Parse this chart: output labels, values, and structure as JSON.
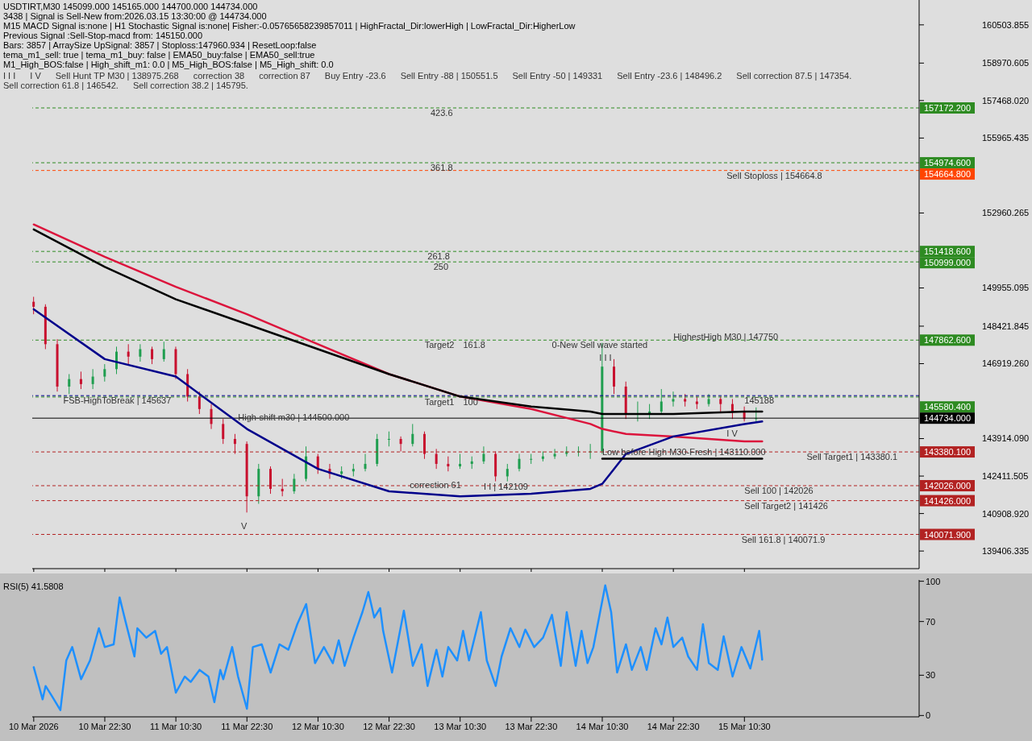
{
  "chart_data": [
    {
      "type": "candlestick",
      "title": "USDTIRT,M30  145099.000 145165.000 144700.000 144734.000",
      "x": [
        "2026-03-10T10:30",
        "2026-03-10T12:30",
        "2026-03-10T14:30",
        "2026-03-10T16:30",
        "2026-03-10T18:30",
        "2026-03-10T20:30",
        "2026-03-10T22:30",
        "2026-03-11T00:30",
        "2026-03-11T02:30",
        "2026-03-11T04:30",
        "2026-03-11T06:30",
        "2026-03-11T08:30",
        "2026-03-11T10:30",
        "2026-03-11T12:30",
        "2026-03-11T14:30",
        "2026-03-11T16:30",
        "2026-03-11T18:30",
        "2026-03-11T20:30",
        "2026-03-11T22:30",
        "2026-03-12T00:30",
        "2026-03-12T02:30",
        "2026-03-12T04:30",
        "2026-03-12T06:30",
        "2026-03-12T08:30",
        "2026-03-12T10:30",
        "2026-03-12T12:30",
        "2026-03-12T14:30",
        "2026-03-12T16:30",
        "2026-03-12T18:30",
        "2026-03-12T20:30",
        "2026-03-12T22:30",
        "2026-03-13T00:30",
        "2026-03-13T02:30",
        "2026-03-13T04:30",
        "2026-03-13T06:30",
        "2026-03-13T08:30",
        "2026-03-13T10:30",
        "2026-03-13T12:30",
        "2026-03-13T14:30",
        "2026-03-13T16:30",
        "2026-03-13T18:30",
        "2026-03-13T20:30",
        "2026-03-13T22:30",
        "2026-03-14T00:30",
        "2026-03-14T02:30",
        "2026-03-14T04:30",
        "2026-03-14T06:30",
        "2026-03-14T08:30",
        "2026-03-14T10:30",
        "2026-03-14T12:30",
        "2026-03-14T14:30",
        "2026-03-14T16:30",
        "2026-03-14T18:30",
        "2026-03-14T20:30",
        "2026-03-14T22:30",
        "2026-03-15T00:30",
        "2026-03-15T02:30",
        "2026-03-15T04:30",
        "2026-03-15T06:30",
        "2026-03-15T08:30",
        "2026-03-15T10:30",
        "2026-03-15T12:30"
      ],
      "ohlc": [
        [
          149400,
          149600,
          148900,
          149200
        ],
        [
          149200,
          149300,
          147500,
          147700
        ],
        [
          147700,
          147900,
          145800,
          146000
        ],
        [
          146000,
          146500,
          145700,
          146300
        ],
        [
          146300,
          146600,
          145900,
          146100
        ],
        [
          146100,
          146700,
          145900,
          146400
        ],
        [
          146400,
          146900,
          146200,
          146700
        ],
        [
          146700,
          147600,
          146500,
          147400
        ],
        [
          147400,
          147700,
          146900,
          147200
        ],
        [
          147200,
          147700,
          147000,
          147500
        ],
        [
          147500,
          147600,
          146900,
          147100
        ],
        [
          147100,
          147800,
          147000,
          147500
        ],
        [
          147500,
          147600,
          146300,
          146500
        ],
        [
          146500,
          146700,
          145400,
          145600
        ],
        [
          145600,
          145800,
          144900,
          145100
        ],
        [
          145100,
          145300,
          144300,
          144500
        ],
        [
          144500,
          144700,
          143700,
          143900
        ],
        [
          143900,
          144100,
          143300,
          143700
        ],
        [
          143700,
          143800,
          140950,
          141600
        ],
        [
          141600,
          142900,
          141300,
          142700
        ],
        [
          142700,
          142800,
          141700,
          141900
        ],
        [
          141900,
          142300,
          141600,
          141800
        ],
        [
          141800,
          142500,
          141700,
          142300
        ],
        [
          142300,
          143600,
          142200,
          143200
        ],
        [
          143200,
          143300,
          142500,
          142700
        ],
        [
          142700,
          142900,
          142300,
          142500
        ],
        [
          142500,
          142800,
          142300,
          142600
        ],
        [
          142600,
          142900,
          142400,
          142700
        ],
        [
          142700,
          143300,
          142600,
          142900
        ],
        [
          142900,
          144100,
          142800,
          143900
        ],
        [
          143900,
          144200,
          143600,
          143900
        ],
        [
          143900,
          144000,
          143400,
          143700
        ],
        [
          143700,
          144500,
          143600,
          144100
        ],
        [
          144100,
          144200,
          143100,
          143300
        ],
        [
          143300,
          143500,
          142700,
          142900
        ],
        [
          142900,
          143200,
          142600,
          142800
        ],
        [
          142800,
          143300,
          142700,
          142900
        ],
        [
          142900,
          143200,
          142700,
          143000
        ],
        [
          143000,
          143600,
          142900,
          143300
        ],
        [
          143300,
          143400,
          142200,
          142400
        ],
        [
          142400,
          142900,
          142200,
          142700
        ],
        [
          142700,
          143300,
          142600,
          143100
        ],
        [
          143100,
          143300,
          142900,
          143100
        ],
        [
          143100,
          143400,
          143000,
          143200
        ],
        [
          143200,
          143500,
          143100,
          143300
        ],
        [
          143300,
          143600,
          143200,
          143400
        ],
        [
          143400,
          143600,
          143200,
          143400
        ],
        [
          143400,
          143700,
          143100,
          143400
        ],
        [
          143400,
          147750,
          143300,
          146800
        ],
        [
          146800,
          147100,
          145700,
          146000
        ],
        [
          146000,
          146200,
          144700,
          144900
        ],
        [
          144900,
          145400,
          144600,
          144900
        ],
        [
          144900,
          145300,
          144700,
          145000
        ],
        [
          145000,
          145900,
          144900,
          145400
        ],
        [
          145400,
          145800,
          145200,
          145500
        ],
        [
          145500,
          145700,
          145200,
          145400
        ],
        [
          145400,
          145600,
          145100,
          145300
        ],
        [
          145300,
          145700,
          145200,
          145500
        ],
        [
          145500,
          145600,
          145000,
          145300
        ],
        [
          145300,
          145500,
          144700,
          145000
        ],
        [
          145000,
          145200,
          144600,
          144700
        ],
        [
          144700,
          145165,
          144600,
          144734
        ]
      ],
      "series": [
        {
          "type": "line",
          "color": "#dc143c",
          "x": [
            "2026-03-10T10:30",
            "2026-03-10T22:30",
            "2026-03-11T10:30",
            "2026-03-11T22:30",
            "2026-03-12T10:30",
            "2026-03-12T22:30",
            "2026-03-13T10:30",
            "2026-03-13T22:30",
            "2026-03-14T08:30",
            "2026-03-14T10:30",
            "2026-03-14T14:30",
            "2026-03-14T22:30",
            "2026-03-15T10:30",
            "2026-03-15T13:30"
          ],
          "values": [
            152500,
            151200,
            150000,
            148900,
            147700,
            146500,
            145600,
            145100,
            144500,
            144300,
            144100,
            144000,
            143800,
            143800
          ]
        },
        {
          "type": "line",
          "color": "#000000",
          "x": [
            "2026-03-10T10:30",
            "2026-03-10T22:30",
            "2026-03-11T10:30",
            "2026-03-11T22:30",
            "2026-03-12T10:30",
            "2026-03-12T22:30",
            "2026-03-13T10:30",
            "2026-03-13T22:30",
            "2026-03-14T08:30",
            "2026-03-14T10:30",
            "2026-03-14T14:30",
            "2026-03-14T22:30",
            "2026-03-15T10:30",
            "2026-03-15T13:30"
          ],
          "values": [
            152300,
            150800,
            149500,
            148500,
            147500,
            146500,
            145600,
            145200,
            145000,
            144900,
            144900,
            144900,
            145000,
            145000
          ]
        },
        {
          "type": "line",
          "color": "#00008b",
          "x": [
            "2026-03-10T10:30",
            "2026-03-10T22:30",
            "2026-03-11T10:30",
            "2026-03-11T22:30",
            "2026-03-12T10:30",
            "2026-03-12T22:30",
            "2026-03-13T10:30",
            "2026-03-13T22:30",
            "2026-03-14T08:30",
            "2026-03-14T10:30",
            "2026-03-14T14:30",
            "2026-03-14T22:30",
            "2026-03-15T10:30",
            "2026-03-15T13:30"
          ],
          "values": [
            149100,
            147100,
            146400,
            144300,
            142700,
            141800,
            141600,
            141700,
            141900,
            142100,
            143300,
            144000,
            144500,
            144600
          ]
        },
        {
          "type": "line",
          "color": "#000000",
          "x": [
            "2026-03-14T10:30",
            "2026-03-15T13:30"
          ],
          "values": [
            143110,
            143110
          ]
        }
      ],
      "xlim": [
        "2026-03-10T10:15",
        "2026-03-16T16:00"
      ],
      "xticks": [
        {
          "value": "2026-03-10T10:30",
          "label": null
        },
        {
          "value": "2026-03-10T22:30",
          "label": null
        },
        {
          "value": "2026-03-11T10:30",
          "label": null
        },
        {
          "value": "2026-03-11T22:30",
          "label": null
        },
        {
          "value": "2026-03-12T10:30",
          "label": null
        },
        {
          "value": "2026-03-12T22:30",
          "label": null
        },
        {
          "value": "2026-03-13T10:30",
          "label": null
        },
        {
          "value": "2026-03-13T22:30",
          "label": null
        },
        {
          "value": "2026-03-14T10:30",
          "label": null
        },
        {
          "value": "2026-03-14T22:30",
          "label": null
        },
        {
          "value": "2026-03-15T10:30",
          "label": null
        }
      ],
      "ylim": [
        138700,
        161500
      ],
      "yticks": [
        160503.855,
        158970.605,
        {
          "value": 157468.02,
          "label": "157468.020"
        },
        155965.435,
        152960.265,
        149955.095,
        148421.845,
        {
          "value": 146919.26,
          "label": "146919.260"
        },
        {
          "value": 143914.09,
          "label": "143914.090"
        },
        142411.505,
        {
          "value": 140908.92,
          "label": "140908.920"
        },
        139406.335
      ],
      "tick_labels": "y",
      "ref_lines": [
        {
          "axis": "y",
          "value": 157172.2,
          "label": "157172.200",
          "color": "#2e8b22",
          "line_style": "dashed"
        },
        {
          "axis": "y",
          "value": 154974.6,
          "label": "154974.600",
          "color": "#2e8b22",
          "line_style": "dashed"
        },
        {
          "axis": "y",
          "value": 154664.8,
          "label": "154664.800",
          "color": "#ff4500",
          "line_style": "dashed"
        },
        {
          "axis": "y",
          "value": 151418.6,
          "label": "151418.600",
          "color": "#2e8b22",
          "line_style": "dashed"
        },
        {
          "axis": "y",
          "value": 150999,
          "label": "150999.000",
          "color": "#2e8b22",
          "line_style": "dashed"
        },
        {
          "axis": "y",
          "value": 147862.6,
          "label": "147862.600",
          "color": "#2e8b22",
          "line_style": "dashed"
        },
        {
          "axis": "y",
          "value": 145580.4,
          "label": "145580.400",
          "color": "#2e8b22",
          "line_style": "dashed"
        },
        {
          "axis": "y",
          "value": 145637,
          "label": null,
          "color": "#00008b",
          "line_style": "dashed"
        },
        {
          "axis": "y",
          "value": 144734,
          "label": "144734.000",
          "color": "#000000",
          "line_style": "solid"
        },
        {
          "axis": "y",
          "value": 143380.1,
          "label": "143380.100",
          "color": "#b22222",
          "line_style": "dashed"
        },
        {
          "axis": "y",
          "value": 142026,
          "label": "142026.000",
          "color": "#b22222",
          "line_style": "dashed"
        },
        {
          "axis": "y",
          "value": 141426,
          "label": "141426.000",
          "color": "#b22222",
          "line_style": "dashed"
        },
        {
          "axis": "y",
          "value": 140071.9,
          "label": "140071.900",
          "color": "#b22222",
          "line_style": "dashed"
        }
      ],
      "annotations": [
        "3438 | Signal is Sell-New from:2026.03.15 13:30:00 @ 144734.000",
        "M15 MACD Signal is:none | H1 Stochastic Signal is:none| Fisher:-0.05765658239857011 | HighFractal_Dir:lowerHigh | LowFractal_Dir:HigherLow",
        "Previous Signal :Sell-Stop-macd from: 145150.000",
        "Bars: 3857 | ArraySize UpSignal: 3857 | Stoploss:147960.934 | ResetLoop:false",
        "tema_m1_sell: true | tema_m1_buy: false | EMA50_buy:false | EMA50_sell:true",
        "M1_High_BOS:false | High_shift_m1: 0.0 | M5_High_BOS:false | M5_High_shift: 0.0",
        "I I I",
        "I V",
        "Sell Hunt TP M30 | 138975.268",
        "correction 38",
        "correction 87",
        "Buy Entry -23.6",
        "Sell Entry -88 | 150551.5",
        "Sell Entry -50 | 149331",
        "Sell Entry -23.6 | 148496.2",
        "Sell correction 87.5 | 147354.",
        "Sell correction 61.8 | 146542.",
        "Sell correction 38.2 | 145795.",
        {
          "text": "423.6",
          "x": "2026-03-13T05:30",
          "y": 157172.2
        },
        {
          "text": "361.8",
          "x": "2026-03-13T05:30",
          "y": 154974.6
        },
        {
          "text": "261.8",
          "x": "2026-03-13T05:00",
          "y": 151418.6
        },
        {
          "text": "250",
          "x": "2026-03-13T06:00",
          "y": 150999
        },
        {
          "text": "Target2",
          "x": "2026-03-13T04:30",
          "y": 147862.6
        },
        {
          "text": "161.8",
          "x": "2026-03-13T11:00",
          "y": 147862.6
        },
        {
          "text": "Target1",
          "x": "2026-03-13T04:30",
          "y": 145580.4
        },
        {
          "text": "100",
          "x": "2026-03-13T11:00",
          "y": 145580.4
        },
        {
          "text": "FSB-HighToBreak | 145637",
          "x": "2026-03-10T15:30",
          "y": 145637
        },
        {
          "text": "V",
          "x": "2026-03-11T21:30",
          "y": 140144
        },
        {
          "text": "High-shift m30 | 144500.000",
          "x": "2026-03-11T21:00",
          "y": 144500
        },
        {
          "text": "correction 61",
          "x": "2026-03-13T02:00",
          "y": 141805
        },
        {
          "text": "I I | 142109",
          "x": "2026-03-13T14:30",
          "y": 141750
        },
        {
          "text": "I I I",
          "x": "2026-03-14T10:00",
          "y": 146900
        },
        {
          "text": "0-New Sell wave started",
          "x": "2026-03-14T02:00",
          "y": 147862.6
        },
        {
          "text": "HighestHigh M30 | 147750",
          "x": "2026-03-14T22:30",
          "y": 147750
        },
        {
          "text": "Low before High M30-Fresh | 143110.000",
          "x": "2026-03-14T10:30",
          "y": 143110
        },
        {
          "text": "Sell Stoploss | 154664.8",
          "x": "2026-03-15T07:30",
          "y": 154664.8
        },
        {
          "text": "145188",
          "x": "2026-03-15T10:30",
          "y": 145188
        },
        {
          "text": "I V",
          "x": "2026-03-15T07:30",
          "y": 143865
        },
        {
          "text": "Sell Target1 | 143380.1",
          "x": "2026-03-15T21:00",
          "y": 143380.1
        },
        {
          "text": "Sell 100 | 142026",
          "x": "2026-03-15T10:30",
          "y": 142026
        },
        {
          "text": "Sell Target2 | 141426",
          "x": "2026-03-15T10:30",
          "y": 141426
        },
        {
          "text": "Sell 161.8 | 140071.9",
          "x": "2026-03-15T10:00",
          "y": 140071.9
        }
      ]
    },
    {
      "type": "line",
      "title": "RSI(5) 41.5808",
      "color": "#1e90ff",
      "x": [
        "2026-03-10T10:30",
        "2026-03-10T12:00",
        "2026-03-10T12:30",
        "2026-03-10T13:30",
        "2026-03-10T15:00",
        "2026-03-10T16:00",
        "2026-03-10T17:00",
        "2026-03-10T18:30",
        "2026-03-10T20:00",
        "2026-03-10T21:30",
        "2026-03-10T22:30",
        "2026-03-11T00:00",
        "2026-03-11T01:00",
        "2026-03-11T02:00",
        "2026-03-11T03:30",
        "2026-03-11T04:00",
        "2026-03-11T05:30",
        "2026-03-11T07:00",
        "2026-03-11T08:00",
        "2026-03-11T09:00",
        "2026-03-11T10:30",
        "2026-03-11T12:00",
        "2026-03-11T13:00",
        "2026-03-11T14:30",
        "2026-03-11T16:00",
        "2026-03-11T17:00",
        "2026-03-11T18:00",
        "2026-03-11T18:30",
        "2026-03-11T20:00",
        "2026-03-11T21:00",
        "2026-03-11T22:30",
        "2026-03-11T23:30",
        "2026-03-12T01:00",
        "2026-03-12T02:30",
        "2026-03-12T04:00",
        "2026-03-12T05:30",
        "2026-03-12T07:00",
        "2026-03-12T08:30",
        "2026-03-12T10:00",
        "2026-03-12T11:30",
        "2026-03-12T13:00",
        "2026-03-12T14:00",
        "2026-03-12T15:00",
        "2026-03-12T16:30",
        "2026-03-12T18:00",
        "2026-03-12T19:00",
        "2026-03-12T20:00",
        "2026-03-12T21:00",
        "2026-03-12T21:30",
        "2026-03-12T23:00",
        "2026-03-13T01:00",
        "2026-03-13T02:30",
        "2026-03-13T04:00",
        "2026-03-13T05:00",
        "2026-03-13T06:30",
        "2026-03-13T07:30",
        "2026-03-13T08:30",
        "2026-03-13T10:00",
        "2026-03-13T11:00",
        "2026-03-13T12:00",
        "2026-03-13T14:00",
        "2026-03-13T15:00",
        "2026-03-13T16:30",
        "2026-03-13T17:30",
        "2026-03-13T19:00",
        "2026-03-13T20:30",
        "2026-03-13T21:30",
        "2026-03-13T23:00",
        "2026-03-14T00:30",
        "2026-03-14T02:00",
        "2026-03-14T03:30",
        "2026-03-14T04:30",
        "2026-03-14T06:00",
        "2026-03-14T07:00",
        "2026-03-14T08:00",
        "2026-03-14T09:00",
        "2026-03-14T11:00",
        "2026-03-14T12:00",
        "2026-03-14T13:00",
        "2026-03-14T14:30",
        "2026-03-14T15:30",
        "2026-03-14T17:00",
        "2026-03-14T18:00",
        "2026-03-14T19:30",
        "2026-03-14T20:30",
        "2026-03-14T21:30",
        "2026-03-14T22:30",
        "2026-03-15T00:00",
        "2026-03-15T01:00",
        "2026-03-15T02:30",
        "2026-03-15T03:30",
        "2026-03-15T04:30",
        "2026-03-15T06:00",
        "2026-03-15T07:00",
        "2026-03-15T08:30",
        "2026-03-15T10:00",
        "2026-03-15T11:30",
        "2026-03-15T13:00",
        "2026-03-15T13:30"
      ],
      "values": [
        36,
        12,
        22,
        15,
        4,
        41,
        51,
        27,
        41,
        65,
        51,
        53,
        88,
        70,
        44,
        65,
        58,
        63,
        46,
        51,
        17,
        29,
        25,
        34,
        29,
        10,
        34,
        27,
        51,
        29,
        5,
        51,
        53,
        32,
        53,
        49,
        68,
        83,
        39,
        51,
        39,
        56,
        37,
        58,
        77,
        92,
        73,
        80,
        63,
        32,
        78,
        37,
        53,
        22,
        49,
        29,
        51,
        41,
        63,
        41,
        77,
        41,
        22,
        44,
        65,
        51,
        64,
        51,
        58,
        75,
        37,
        77,
        37,
        63,
        39,
        51,
        97,
        77,
        32,
        53,
        34,
        51,
        34,
        65,
        53,
        73,
        51,
        58,
        44,
        34,
        68,
        39,
        34,
        59,
        29,
        51,
        35,
        63,
        41.6
      ],
      "xlim": [
        "2026-03-10T10:15",
        "2026-03-16T16:00"
      ],
      "xticks": [
        {
          "value": "2026-03-10T10:30",
          "label": "10 Mar 2026"
        },
        {
          "value": "2026-03-10T22:30",
          "label": "10 Mar 22:30"
        },
        {
          "value": "2026-03-11T10:30",
          "label": "11 Mar 10:30"
        },
        {
          "value": "2026-03-11T22:30",
          "label": "11 Mar 22:30"
        },
        {
          "value": "2026-03-12T10:30",
          "label": "12 Mar 10:30"
        },
        {
          "value": "2026-03-12T22:30",
          "label": "12 Mar 22:30"
        },
        {
          "value": "2026-03-13T10:30",
          "label": "13 Mar 10:30"
        },
        {
          "value": "2026-03-13T22:30",
          "label": "13 Mar 22:30"
        },
        {
          "value": "2026-03-14T10:30",
          "label": "14 Mar 10:30"
        },
        {
          "value": "2026-03-14T22:30",
          "label": "14 Mar 22:30"
        },
        {
          "value": "2026-03-15T10:30",
          "label": "15 Mar 10:30"
        }
      ],
      "ylim": [
        -1,
        101
      ],
      "yticks": [
        0,
        30,
        70,
        100
      ]
    }
  ]
}
